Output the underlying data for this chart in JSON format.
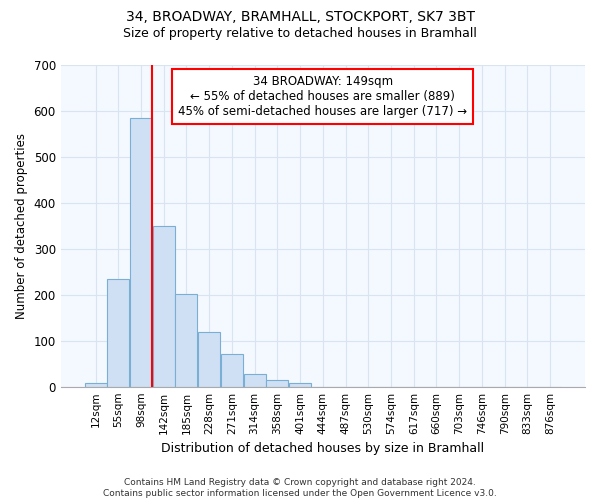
{
  "title1": "34, BROADWAY, BRAMHALL, STOCKPORT, SK7 3BT",
  "title2": "Size of property relative to detached houses in Bramhall",
  "xlabel": "Distribution of detached houses by size in Bramhall",
  "ylabel": "Number of detached properties",
  "bin_labels": [
    "12sqm",
    "55sqm",
    "98sqm",
    "142sqm",
    "185sqm",
    "228sqm",
    "271sqm",
    "314sqm",
    "358sqm",
    "401sqm",
    "444sqm",
    "487sqm",
    "530sqm",
    "574sqm",
    "617sqm",
    "660sqm",
    "703sqm",
    "746sqm",
    "790sqm",
    "833sqm",
    "876sqm"
  ],
  "bar_heights": [
    8,
    235,
    585,
    350,
    202,
    118,
    72,
    27,
    14,
    7,
    0,
    0,
    0,
    0,
    0,
    0,
    0,
    0,
    0,
    0,
    0
  ],
  "bar_color": "#cfe0f5",
  "bar_edge_color": "#7aafd4",
  "vline_x": 2.5,
  "vline_color": "red",
  "annotation_text": "34 BROADWAY: 149sqm\n← 55% of detached houses are smaller (889)\n45% of semi-detached houses are larger (717) →",
  "annotation_box_color": "white",
  "annotation_box_edge": "red",
  "ylim": [
    0,
    700
  ],
  "yticks": [
    0,
    100,
    200,
    300,
    400,
    500,
    600,
    700
  ],
  "footer": "Contains HM Land Registry data © Crown copyright and database right 2024.\nContains public sector information licensed under the Open Government Licence v3.0.",
  "bg_color": "#ffffff",
  "plot_bg_color": "#f4f8ff",
  "grid_color": "#d8e4f0"
}
